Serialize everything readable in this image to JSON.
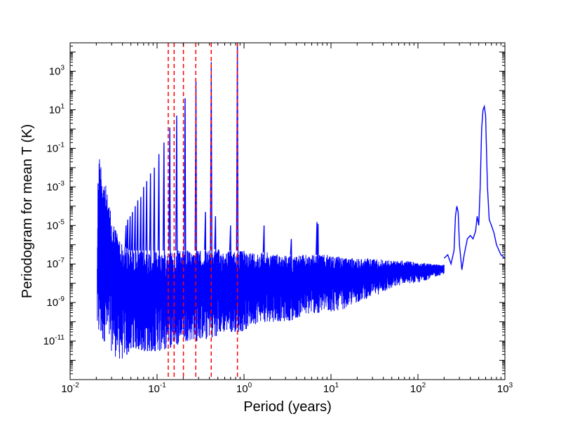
{
  "chart_data": {
    "type": "line",
    "title": "",
    "xlabel": "Period (years)",
    "ylabel": "Periodogram for mean T (K)",
    "xscale": "log",
    "yscale": "log",
    "xlim": [
      0.01,
      1000
    ],
    "ylim": [
      1e-13,
      30000
    ],
    "grid": false,
    "x_ticks": [
      {
        "base": "10",
        "exp": "-2",
        "value": 0.01
      },
      {
        "base": "10",
        "exp": "-1",
        "value": 0.1
      },
      {
        "base": "10",
        "exp": "0",
        "value": 1
      },
      {
        "base": "10",
        "exp": "1",
        "value": 10
      },
      {
        "base": "10",
        "exp": "2",
        "value": 100
      },
      {
        "base": "10",
        "exp": "3",
        "value": 1000
      }
    ],
    "y_ticks": [
      {
        "base": "10",
        "exp": "-11",
        "value": 1e-11
      },
      {
        "base": "10",
        "exp": "-9",
        "value": 1e-09
      },
      {
        "base": "10",
        "exp": "-7",
        "value": 1e-07
      },
      {
        "base": "10",
        "exp": "-5",
        "value": 1e-05
      },
      {
        "base": "10",
        "exp": "-3",
        "value": 0.001
      },
      {
        "base": "10",
        "exp": "-1",
        "value": 0.1
      },
      {
        "base": "10",
        "exp": "1",
        "value": 10
      },
      {
        "base": "10",
        "exp": "3",
        "value": 1000
      }
    ],
    "series": [
      {
        "color": "#0000ff",
        "envelope": {
          "x": [
            0.0205,
            0.021,
            0.022,
            0.023,
            0.025,
            0.027,
            0.03,
            0.035,
            0.04,
            0.05,
            0.07,
            0.1,
            0.15,
            0.2,
            0.3,
            0.5,
            0.7,
            1,
            1.5,
            2,
            3,
            5,
            7,
            10,
            15,
            20,
            30,
            50,
            70,
            100,
            150,
            200
          ],
          "upper": [
            3e-07,
            0.08,
            0.05,
            0.02,
            0.003,
            0.0003,
            3e-05,
            5e-06,
            1e-06,
            5e-07,
            5e-07,
            5e-07,
            5e-07,
            5e-07,
            5e-07,
            6e-07,
            5e-07,
            5e-07,
            4e-07,
            4e-07,
            3e-07,
            3e-07,
            3e-07,
            3e-07,
            2e-07,
            2e-07,
            2e-07,
            1.5e-07,
            1.5e-07,
            1.2e-07,
            1e-07,
            1e-07
          ],
          "lower": [
            3e-11,
            3e-12,
            1e-11,
            3e-12,
            1e-11,
            3e-12,
            3e-12,
            1e-12,
            1e-12,
            5e-12,
            3e-12,
            3e-12,
            5e-12,
            1e-11,
            1e-11,
            2e-11,
            3e-11,
            3e-11,
            1e-10,
            1e-10,
            1e-10,
            2e-10,
            3e-10,
            3e-10,
            5e-10,
            1e-09,
            2e-09,
            5e-09,
            1e-08,
            1e-08,
            2e-08,
            3e-08
          ]
        },
        "low_freq_curve": {
          "x": [
            200,
            220,
            240,
            260,
            270,
            280,
            290,
            300,
            320,
            340,
            370,
            400,
            430,
            460,
            480,
            500,
            520,
            540,
            560,
            580,
            600,
            630,
            660,
            700,
            750,
            800,
            900,
            1000
          ],
          "y": [
            2e-07,
            3e-07,
            1e-07,
            5e-07,
            3e-05,
            0.0001,
            5e-05,
            1e-06,
            5e-08,
            3e-07,
            2e-06,
            3e-06,
            2e-06,
            5e-06,
            3e-05,
            1e-05,
            0.001,
            1,
            10,
            15,
            5,
            0.001,
            2e-05,
            1e-05,
            4e-06,
            1e-06,
            3e-07,
            2e-07
          ]
        },
        "spikes": [
          {
            "x": 0.839,
            "y": 30000
          },
          {
            "x": 0.42,
            "y": 3000
          },
          {
            "x": 0.28,
            "y": 300
          },
          {
            "x": 0.21,
            "y": 40
          },
          {
            "x": 0.168,
            "y": 5
          },
          {
            "x": 0.14,
            "y": 1.2
          },
          {
            "x": 0.12,
            "y": 0.2
          },
          {
            "x": 0.105,
            "y": 0.05
          },
          {
            "x": 0.093,
            "y": 0.01
          },
          {
            "x": 0.084,
            "y": 0.005
          },
          {
            "x": 0.076,
            "y": 0.002
          },
          {
            "x": 0.07,
            "y": 0.001
          },
          {
            "x": 0.065,
            "y": 0.0003
          },
          {
            "x": 0.06,
            "y": 0.0002
          },
          {
            "x": 0.056,
            "y": 0.0001
          },
          {
            "x": 0.052,
            "y": 5e-05
          },
          {
            "x": 0.049,
            "y": 3e-05
          },
          {
            "x": 0.046,
            "y": 2e-05
          },
          {
            "x": 0.044,
            "y": 1e-05
          },
          {
            "x": 0.36,
            "y": 5e-05
          },
          {
            "x": 0.47,
            "y": 3e-05
          },
          {
            "x": 0.7,
            "y": 1e-05
          },
          {
            "x": 1.7,
            "y": 1e-05
          },
          {
            "x": 3.5,
            "y": 2e-06
          },
          {
            "x": 6.9,
            "y": 1.5e-05
          },
          {
            "x": 7.1,
            "y": 1.2e-05
          }
        ]
      }
    ],
    "vlines": {
      "color": "#ff0000",
      "style": "dashed",
      "x": [
        0.1344,
        0.1571,
        0.201,
        0.2786,
        0.4196,
        0.8402
      ]
    }
  }
}
